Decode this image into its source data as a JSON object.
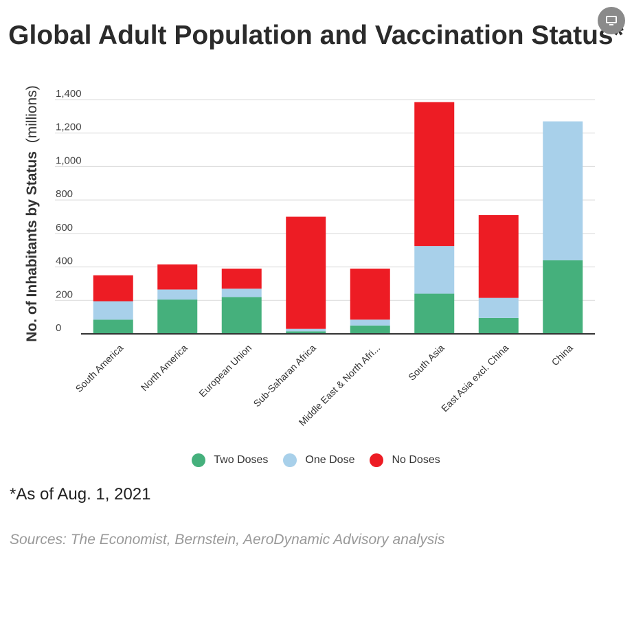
{
  "page": {
    "title": "Global Adult Population and Vaccination Status*",
    "note": "*As of Aug. 1, 2021",
    "sources": "Sources: The Economist, Bernstein, AeroDynamic Advisory analysis",
    "corner_icon": "comment-icon"
  },
  "chart_data": {
    "type": "bar",
    "stacked": true,
    "title": "Global Adult Population and Vaccination Status*",
    "ylabel_bold": "No. of Inhabitants by Status",
    "ylabel_rest": "(millions)",
    "xlabel": "",
    "ylim": [
      0,
      1400
    ],
    "yticks": [
      0,
      200,
      400,
      600,
      800,
      "1,000",
      "1,200",
      "1,400"
    ],
    "ytick_values": [
      0,
      200,
      400,
      600,
      800,
      1000,
      1200,
      1400
    ],
    "grid": true,
    "legend_position": "bottom-center",
    "categories": [
      "South America",
      "North America",
      "European Union",
      "Sub-Saharan Africa",
      "Middle East & North Afri...",
      "South Asia",
      "East Asia excl. China",
      "China"
    ],
    "series": [
      {
        "name": "Two Doses",
        "color": "#45b07c",
        "values": [
          85,
          205,
          220,
          15,
          50,
          240,
          95,
          440
        ]
      },
      {
        "name": "One Dose",
        "color": "#a8d0ea",
        "values": [
          110,
          60,
          50,
          15,
          35,
          285,
          120,
          830
        ]
      },
      {
        "name": "No Doses",
        "color": "#ed1c24",
        "values": [
          155,
          150,
          120,
          670,
          305,
          860,
          495,
          0
        ]
      }
    ]
  }
}
